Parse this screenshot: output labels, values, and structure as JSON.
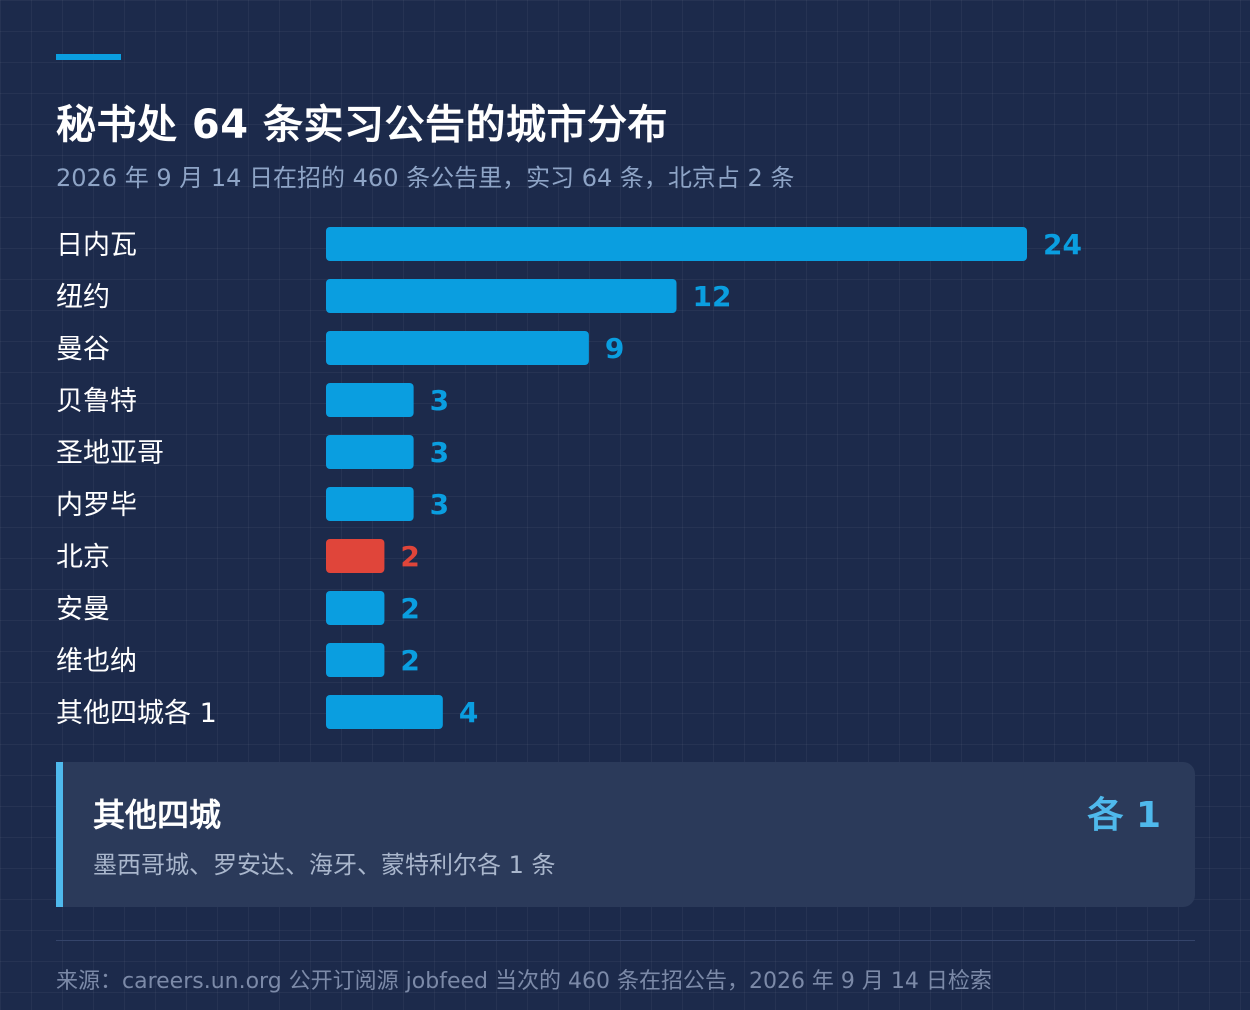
{
  "header": {
    "title": "秘书处 64 条实习公告的城市分布",
    "subtitle": "2026 年 9 月 14 日在招的 460 条公告里，实习 64 条，北京占 2 条"
  },
  "colors": {
    "bar_default": "#0a9ee0",
    "bar_highlight": "#e0453a",
    "accent": "#4fb9ec"
  },
  "chart_data": {
    "type": "bar",
    "orientation": "horizontal",
    "categories": [
      "日内瓦",
      "纽约",
      "曼谷",
      "贝鲁特",
      "圣地亚哥",
      "内罗毕",
      "北京",
      "安曼",
      "维也纳",
      "其他四城各 1"
    ],
    "values": [
      24,
      12,
      9,
      3,
      3,
      3,
      2,
      2,
      2,
      4
    ],
    "highlight": "北京",
    "xlim": [
      0,
      24
    ],
    "grid": false,
    "legend": "none"
  },
  "note": {
    "title": "其他四城",
    "badge": "各 1",
    "detail": "墨西哥城、罗安达、海牙、蒙特利尔各 1 条"
  },
  "footer": {
    "source": "来源：careers.un.org 公开订阅源 jobfeed 当次的 460 条在招公告，2026 年 9 月 14 日检索"
  }
}
